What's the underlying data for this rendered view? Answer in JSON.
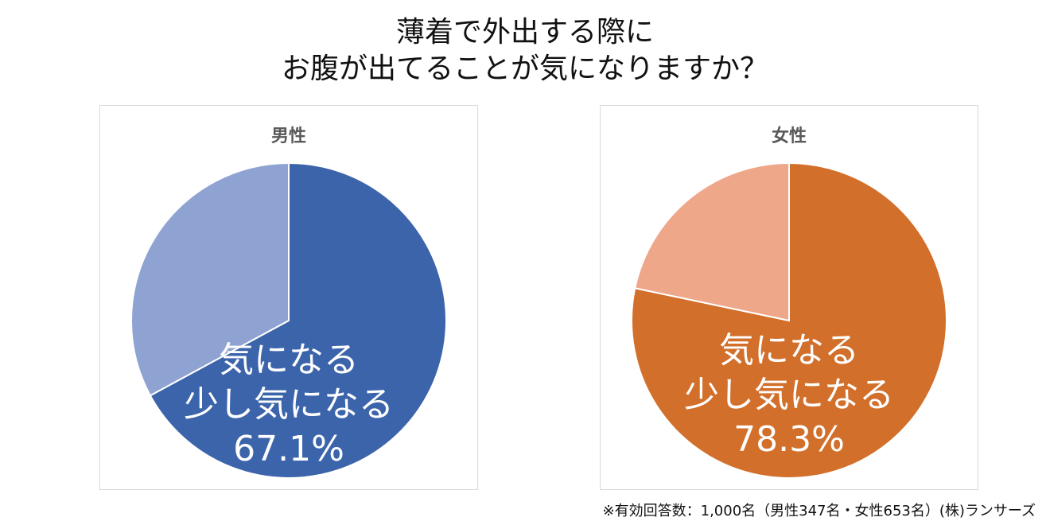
{
  "title": {
    "line1": "薄着で外出する際に",
    "line2": "お腹が出てることが気になりますか？"
  },
  "chart_data": [
    {
      "type": "pie",
      "title": "男性",
      "slices": [
        {
          "label": "気になる 少し気になる",
          "value": 67.1,
          "color": "#3c64ab"
        },
        {
          "value": 32.9,
          "color": "#8fa3d2"
        }
      ],
      "annotation": {
        "line1": "気になる",
        "line2": "少し気になる",
        "value": "67.1%"
      }
    },
    {
      "type": "pie",
      "title": "女性",
      "slices": [
        {
          "label": "気になる 少し気になる",
          "value": 78.3,
          "color": "#d26f2a"
        },
        {
          "value": 21.7,
          "color": "#efa78a"
        }
      ],
      "annotation": {
        "line1": "気になる",
        "line2": "少し気になる",
        "value": "78.3%"
      }
    }
  ],
  "footnote": "※有効回答数：1,000名（男性347名・女性653名）(株)ランサーズ"
}
